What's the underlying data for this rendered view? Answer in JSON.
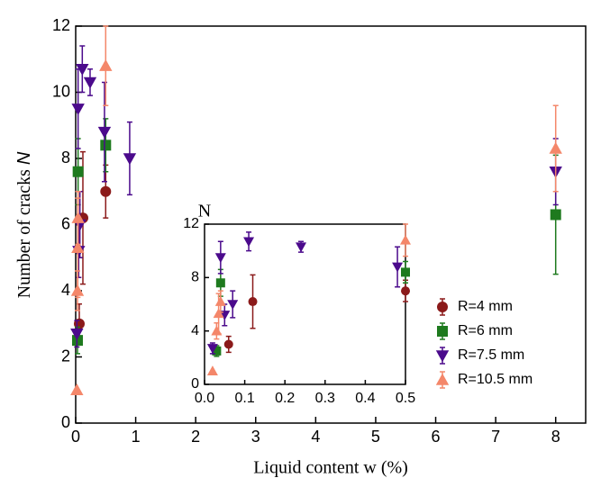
{
  "chart_data": [
    {
      "type": "scatter",
      "xlabel": "Liquid content w (%)",
      "ylabel": "Number of cracks ",
      "ylabel_symbol": "N",
      "xlim": [
        0,
        8.5
      ],
      "ylim": [
        0,
        12
      ],
      "xticks": [
        0,
        1,
        2,
        3,
        4,
        5,
        6,
        7,
        8
      ],
      "yticks": [
        0,
        2,
        4,
        6,
        8,
        10,
        12
      ],
      "legend": "lower right",
      "series": [
        {
          "name": "R=4 mm",
          "color": "#8b1a1a",
          "marker": "circle",
          "x": [
            0.06,
            0.12,
            0.5
          ],
          "values": [
            3.0,
            6.2,
            7.0
          ],
          "errors": [
            0.6,
            2.0,
            0.8
          ]
        },
        {
          "name": "R=6 mm",
          "color": "#1e7a1e",
          "marker": "square",
          "x": [
            0.03,
            0.04,
            0.5,
            8
          ],
          "values": [
            2.5,
            7.6,
            8.4,
            6.3
          ],
          "errors": [
            0.4,
            1.0,
            0.8,
            1.8
          ]
        },
        {
          "name": "R=7.5 mm",
          "color": "#4b0a8c",
          "marker": "triangle-down",
          "x": [
            0.02,
            0.04,
            0.05,
            0.07,
            0.11,
            0.24,
            0.48,
            0.9,
            8
          ],
          "values": [
            2.7,
            9.5,
            5.2,
            6.0,
            10.7,
            10.3,
            8.8,
            8.0,
            7.6
          ],
          "errors": [
            0.4,
            1.2,
            0.8,
            1.0,
            0.7,
            0.4,
            1.5,
            1.1,
            1.0
          ]
        },
        {
          "name": "R=10.5 mm",
          "color": "#f4876a",
          "marker": "triangle-up",
          "x": [
            0.02,
            0.03,
            0.035,
            0.04,
            0.5,
            8
          ],
          "values": [
            1.0,
            4.0,
            5.3,
            6.2,
            10.8,
            8.3
          ],
          "errors": [
            0,
            0.6,
            1.5,
            0.8,
            1.2,
            1.3
          ]
        }
      ]
    },
    {
      "type": "scatter",
      "ylabel": "N",
      "xlim": [
        0,
        0.5
      ],
      "ylim": [
        0,
        12
      ],
      "xticks": [
        {
          "value": 0,
          "label": "0.0"
        },
        0.1,
        0.2,
        0.3,
        0.4,
        0.5
      ],
      "yticks": [
        0,
        4,
        8,
        12
      ]
    }
  ]
}
